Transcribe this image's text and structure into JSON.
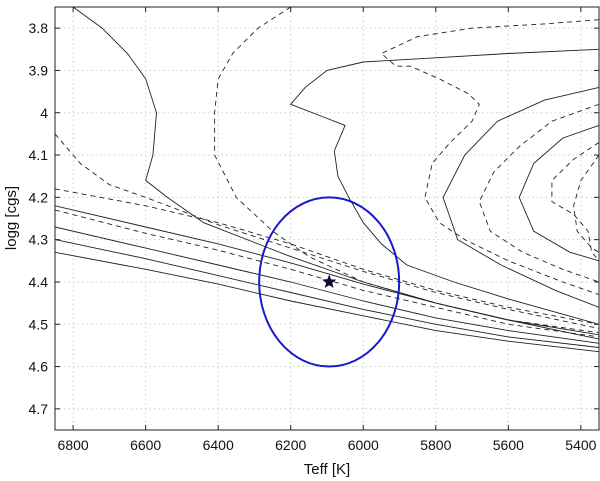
{
  "chart_data": {
    "type": "line",
    "title": "",
    "xlabel": "Teff [K]",
    "ylabel": "logg [cgs]",
    "xlim": [
      6850,
      5350
    ],
    "ylim": [
      4.75,
      3.75
    ],
    "x_reversed": true,
    "y_reversed": true,
    "grid": true,
    "xticks": [
      6800,
      6600,
      6400,
      6200,
      6000,
      5800,
      5600,
      5400
    ],
    "yticks": [
      3.8,
      3.9,
      4.0,
      4.1,
      4.2,
      4.3,
      4.4,
      4.5,
      4.6,
      4.7
    ],
    "colors": {
      "tracks": "#222222",
      "ellipse": "#1a1acc",
      "star": "#0d0d33",
      "grid": "#cfcfcf"
    },
    "series": [
      {
        "style": "solid",
        "points": [
          [
            6800,
            3.75
          ],
          [
            6720,
            3.8
          ],
          [
            6650,
            3.86
          ],
          [
            6600,
            3.92
          ],
          [
            6570,
            4.0
          ],
          [
            6580,
            4.1
          ],
          [
            6600,
            4.16
          ],
          [
            6540,
            4.2
          ],
          [
            6440,
            4.26
          ],
          [
            6200,
            4.34
          ],
          [
            6000,
            4.4
          ],
          [
            5800,
            4.45
          ],
          [
            5600,
            4.49
          ],
          [
            5350,
            4.535
          ]
        ]
      },
      {
        "style": "dashed",
        "points": [
          [
            6850,
            4.05
          ],
          [
            6780,
            4.12
          ],
          [
            6700,
            4.17
          ],
          [
            6600,
            4.2
          ],
          [
            6400,
            4.265
          ],
          [
            6200,
            4.32
          ],
          [
            6000,
            4.375
          ],
          [
            5800,
            4.425
          ],
          [
            5600,
            4.465
          ],
          [
            5350,
            4.51
          ]
        ]
      },
      {
        "style": "dashed",
        "points": [
          [
            6850,
            4.18
          ],
          [
            6600,
            4.22
          ],
          [
            6400,
            4.26
          ],
          [
            6200,
            4.31
          ],
          [
            6000,
            4.37
          ],
          [
            5800,
            4.42
          ],
          [
            5600,
            4.46
          ],
          [
            5350,
            4.5
          ]
        ]
      },
      {
        "style": "solid",
        "points": [
          [
            6850,
            4.22
          ],
          [
            6600,
            4.27
          ],
          [
            6400,
            4.31
          ],
          [
            6200,
            4.355
          ],
          [
            6000,
            4.405
          ],
          [
            5800,
            4.45
          ],
          [
            5600,
            4.49
          ],
          [
            5350,
            4.525
          ]
        ]
      },
      {
        "style": "dashed",
        "points": [
          [
            6850,
            4.23
          ],
          [
            6600,
            4.285
          ],
          [
            6400,
            4.325
          ],
          [
            6200,
            4.37
          ],
          [
            6000,
            4.42
          ],
          [
            5800,
            4.46
          ],
          [
            5600,
            4.5
          ],
          [
            5350,
            4.53
          ]
        ]
      },
      {
        "style": "solid",
        "points": [
          [
            6850,
            4.27
          ],
          [
            6600,
            4.32
          ],
          [
            6400,
            4.36
          ],
          [
            6200,
            4.4
          ],
          [
            6000,
            4.445
          ],
          [
            5800,
            4.485
          ],
          [
            5600,
            4.515
          ],
          [
            5350,
            4.545
          ]
        ]
      },
      {
        "style": "solid",
        "points": [
          [
            6850,
            4.3
          ],
          [
            6600,
            4.345
          ],
          [
            6400,
            4.385
          ],
          [
            6200,
            4.425
          ],
          [
            6000,
            4.465
          ],
          [
            5800,
            4.5
          ],
          [
            5600,
            4.53
          ],
          [
            5350,
            4.555
          ]
        ]
      },
      {
        "style": "solid",
        "points": [
          [
            6850,
            4.33
          ],
          [
            6600,
            4.37
          ],
          [
            6400,
            4.405
          ],
          [
            6200,
            4.445
          ],
          [
            6000,
            4.48
          ],
          [
            5800,
            4.515
          ],
          [
            5600,
            4.54
          ],
          [
            5350,
            4.565
          ]
        ]
      },
      {
        "style": "dashed",
        "points": [
          [
            6200,
            3.75
          ],
          [
            6290,
            3.8
          ],
          [
            6360,
            3.86
          ],
          [
            6400,
            3.92
          ],
          [
            6410,
            4.0
          ],
          [
            6410,
            4.1
          ],
          [
            6350,
            4.2
          ],
          [
            6250,
            4.28
          ],
          [
            6150,
            4.34
          ],
          [
            6000,
            4.4
          ],
          [
            5800,
            4.45
          ],
          [
            5600,
            4.49
          ],
          [
            5350,
            4.52
          ]
        ]
      },
      {
        "style": "solid",
        "points": [
          [
            5350,
            3.85
          ],
          [
            5600,
            3.86
          ],
          [
            5800,
            3.87
          ],
          [
            6000,
            3.88
          ],
          [
            6100,
            3.9
          ],
          [
            6160,
            3.94
          ],
          [
            6200,
            3.98
          ],
          [
            6110,
            4.01
          ],
          [
            6050,
            4.03
          ],
          [
            6080,
            4.09
          ],
          [
            6070,
            4.15
          ],
          [
            6040,
            4.2
          ],
          [
            6000,
            4.26
          ],
          [
            5950,
            4.31
          ],
          [
            5880,
            4.36
          ],
          [
            5750,
            4.4
          ],
          [
            5600,
            4.44
          ],
          [
            5350,
            4.5
          ]
        ]
      },
      {
        "style": "dashed",
        "points": [
          [
            5350,
            3.78
          ],
          [
            5500,
            3.79
          ],
          [
            5700,
            3.8
          ],
          [
            5850,
            3.82
          ],
          [
            5950,
            3.86
          ],
          [
            5910,
            3.89
          ],
          [
            5870,
            3.89
          ],
          [
            5790,
            3.92
          ],
          [
            5710,
            3.955
          ],
          [
            5680,
            3.98
          ],
          [
            5700,
            4.02
          ],
          [
            5760,
            4.07
          ],
          [
            5810,
            4.12
          ],
          [
            5830,
            4.2
          ],
          [
            5790,
            4.26
          ],
          [
            5720,
            4.3
          ],
          [
            5600,
            4.35
          ],
          [
            5450,
            4.4
          ],
          [
            5350,
            4.43
          ]
        ]
      },
      {
        "style": "solid",
        "points": [
          [
            5350,
            3.94
          ],
          [
            5500,
            3.97
          ],
          [
            5630,
            4.02
          ],
          [
            5720,
            4.1
          ],
          [
            5780,
            4.2
          ],
          [
            5740,
            4.3
          ],
          [
            5620,
            4.36
          ],
          [
            5470,
            4.42
          ],
          [
            5350,
            4.46
          ]
        ]
      },
      {
        "style": "dashed",
        "points": [
          [
            5350,
            3.98
          ],
          [
            5480,
            4.02
          ],
          [
            5570,
            4.08
          ],
          [
            5640,
            4.14
          ],
          [
            5680,
            4.21
          ],
          [
            5650,
            4.28
          ],
          [
            5560,
            4.33
          ],
          [
            5450,
            4.37
          ],
          [
            5350,
            4.4
          ]
        ]
      },
      {
        "style": "solid",
        "points": [
          [
            5350,
            4.03
          ],
          [
            5450,
            4.06
          ],
          [
            5530,
            4.12
          ],
          [
            5570,
            4.2
          ],
          [
            5530,
            4.28
          ],
          [
            5430,
            4.33
          ],
          [
            5350,
            4.35
          ]
        ]
      },
      {
        "style": "dashed",
        "points": [
          [
            5350,
            4.07
          ],
          [
            5420,
            4.11
          ],
          [
            5480,
            4.16
          ],
          [
            5480,
            4.21
          ],
          [
            5420,
            4.24
          ],
          [
            5380,
            4.28
          ],
          [
            5370,
            4.33
          ],
          [
            5350,
            4.35
          ]
        ]
      },
      {
        "style": "dashed",
        "points": [
          [
            5350,
            4.1
          ],
          [
            5400,
            4.16
          ],
          [
            5420,
            4.22
          ],
          [
            5410,
            4.28
          ],
          [
            5370,
            4.32
          ],
          [
            5350,
            4.33
          ]
        ]
      }
    ],
    "ellipse": {
      "center": [
        6094,
        4.4
      ],
      "teff_radius": 193,
      "logg_radius": 0.2
    },
    "star": [
      6094,
      4.4
    ]
  }
}
